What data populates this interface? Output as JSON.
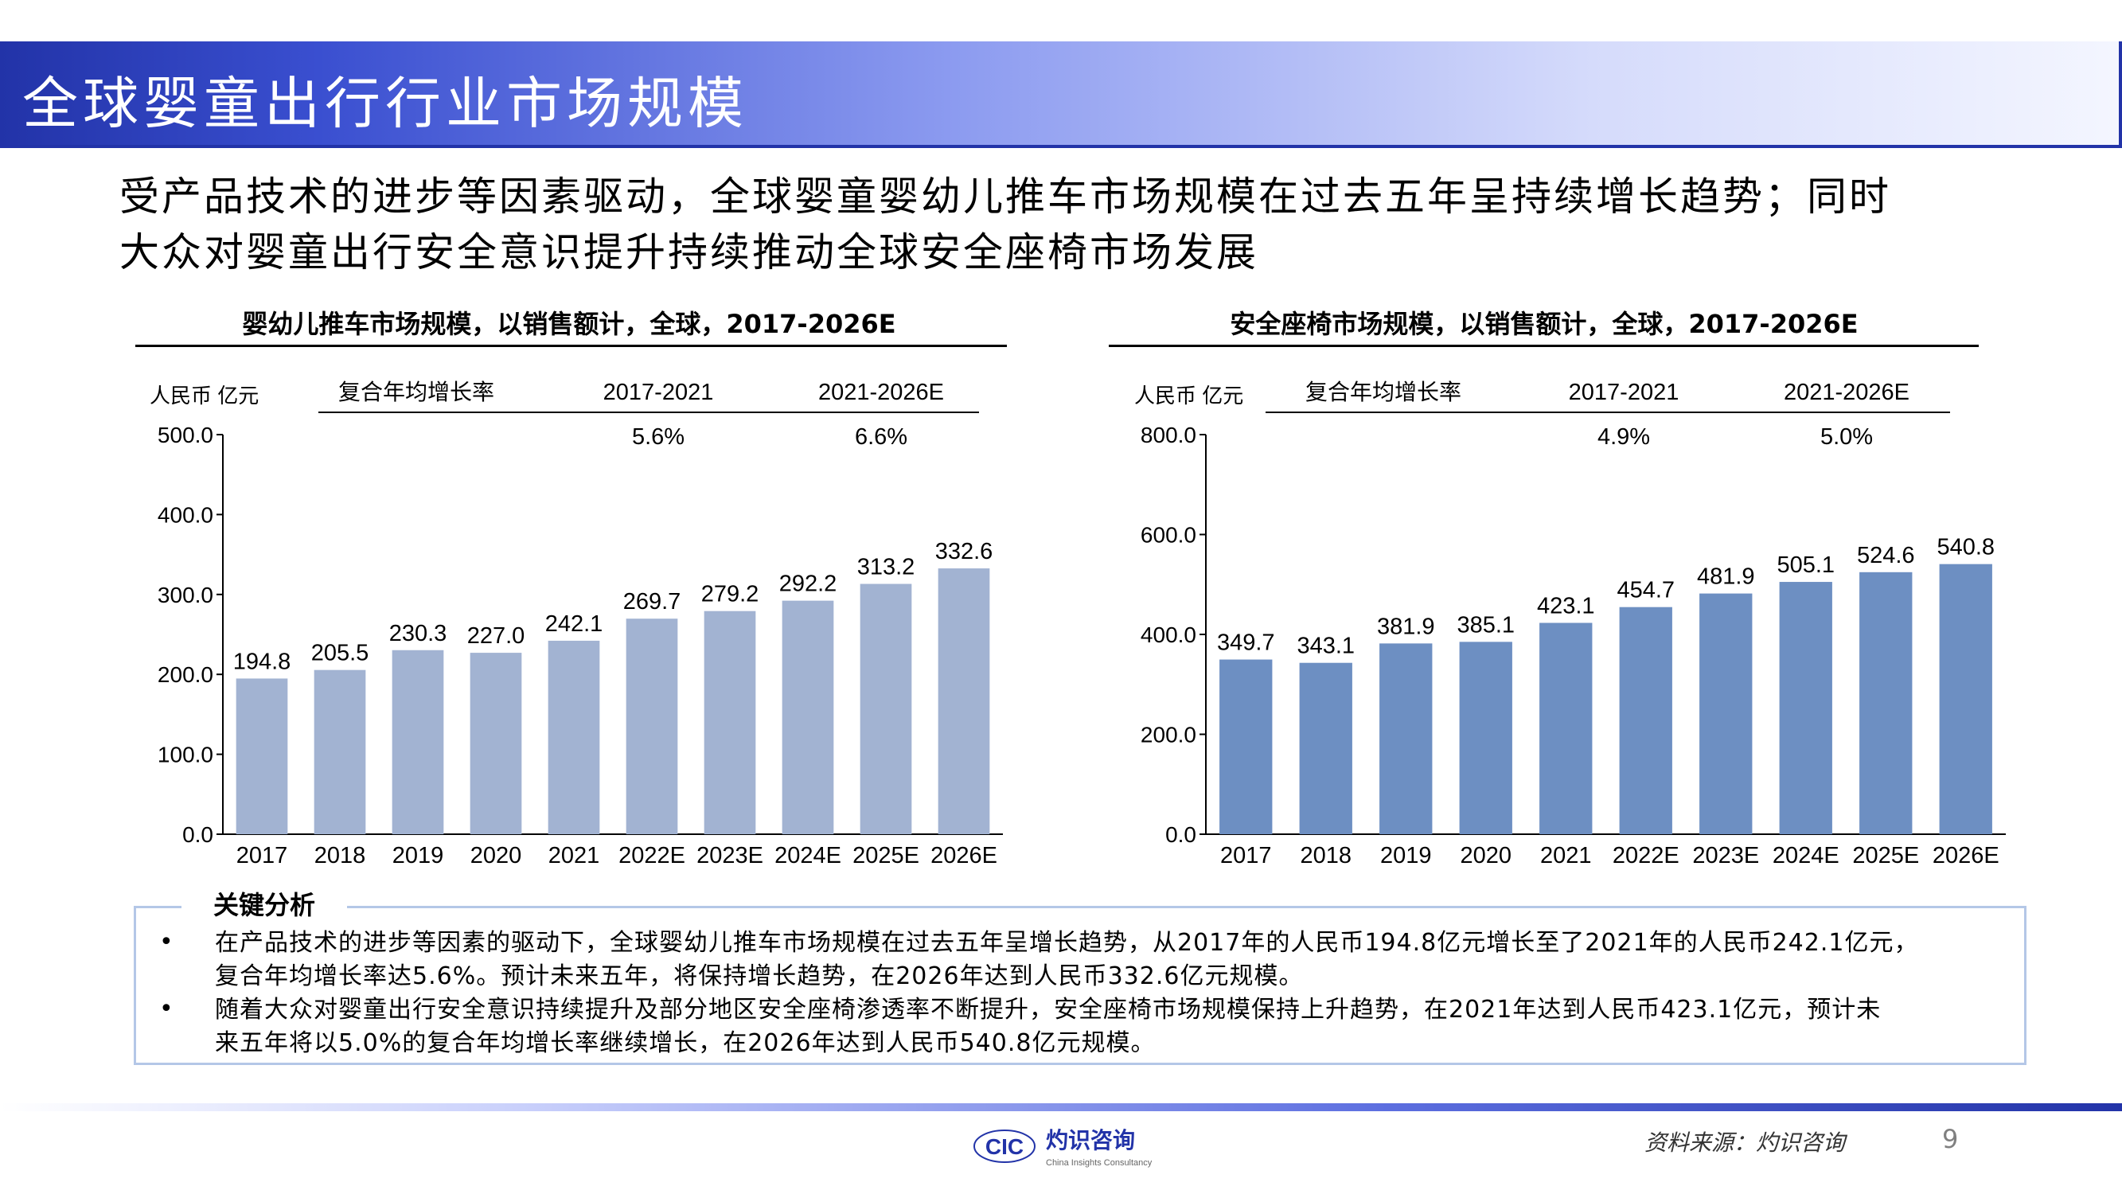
{
  "header": {
    "title": "全球婴童出行行业市场规模"
  },
  "intro": {
    "line1": "受产品技术的进步等因素驱动，全球婴童婴幼儿推车市场规模在过去五年呈持续增长趋势；同时",
    "line2": "大众对婴童出行安全意识提升持续推动全球安全座椅市场发展"
  },
  "chart_data": [
    {
      "type": "bar",
      "title": "婴幼儿推车市场规模，以销售额计，全球，2017-2026E",
      "unit_label": "人民币 亿元",
      "cagr_label": "复合年均增长率",
      "cagr": [
        {
          "period": "2017-2021",
          "value": "5.6%"
        },
        {
          "period": "2021-2026E",
          "value": "6.6%"
        }
      ],
      "categories": [
        "2017",
        "2018",
        "2019",
        "2020",
        "2021",
        "2022E",
        "2023E",
        "2024E",
        "2025E",
        "2026E"
      ],
      "values": [
        194.8,
        205.5,
        230.3,
        227.0,
        242.1,
        269.7,
        279.2,
        292.2,
        313.2,
        332.6
      ],
      "value_labels": [
        "194.8",
        "205.5",
        "230.3",
        "227.0",
        "242.1",
        "269.7",
        "279.2",
        "292.2",
        "313.2",
        "332.6"
      ],
      "ylim": [
        0,
        500
      ],
      "yticks": [
        "0.0",
        "100.0",
        "200.0",
        "300.0",
        "400.0",
        "500.0"
      ],
      "ytick_values": [
        0,
        100,
        200,
        300,
        400,
        500
      ],
      "bar_color": "#a2b3d2"
    },
    {
      "type": "bar",
      "title": "安全座椅市场规模，以销售额计，全球，2017-2026E",
      "unit_label": "人民币 亿元",
      "cagr_label": "复合年均增长率",
      "cagr": [
        {
          "period": "2017-2021",
          "value": "4.9%"
        },
        {
          "period": "2021-2026E",
          "value": "5.0%"
        }
      ],
      "categories": [
        "2017",
        "2018",
        "2019",
        "2020",
        "2021",
        "2022E",
        "2023E",
        "2024E",
        "2025E",
        "2026E"
      ],
      "values": [
        349.7,
        343.1,
        381.9,
        385.1,
        423.1,
        454.7,
        481.9,
        505.1,
        524.6,
        540.8
      ],
      "value_labels": [
        "349.7",
        "343.1",
        "381.9",
        "385.1",
        "423.1",
        "454.7",
        "481.9",
        "505.1",
        "524.6",
        "540.8"
      ],
      "ylim": [
        0,
        800
      ],
      "yticks": [
        "0.0",
        "200.0",
        "400.0",
        "600.0",
        "800.0"
      ],
      "ytick_values": [
        0,
        200,
        400,
        600,
        800
      ],
      "bar_color": "#6d8fc2"
    }
  ],
  "analysis": {
    "label": "关键分析",
    "bullet_symbol": "•",
    "items": [
      {
        "line1": "在产品技术的进步等因素的驱动下，全球婴幼儿推车市场规模在过去五年呈增长趋势，从2017年的人民币194.8亿元增长至了2021年的人民币242.1亿元，",
        "line2": "复合年均增长率达5.6%。预计未来五年，将保持增长趋势，在2026年达到人民币332.6亿元规模。"
      },
      {
        "line1": "随着大众对婴童出行安全意识持续提升及部分地区安全座椅渗透率不断提升，安全座椅市场规模保持上升趋势，在2021年达到人民币423.1亿元，预计未",
        "line2": "来五年将以5.0%的复合年均增长率继续增长，在2026年达到人民币540.8亿元规模。"
      }
    ]
  },
  "footer": {
    "source": "资料来源：灼识咨询",
    "page_number": "9",
    "logo_text": "CIC",
    "logo_cn": "灼识咨询",
    "logo_en": "China Insights Consultancy",
    "accent_color": "#2233a8"
  }
}
